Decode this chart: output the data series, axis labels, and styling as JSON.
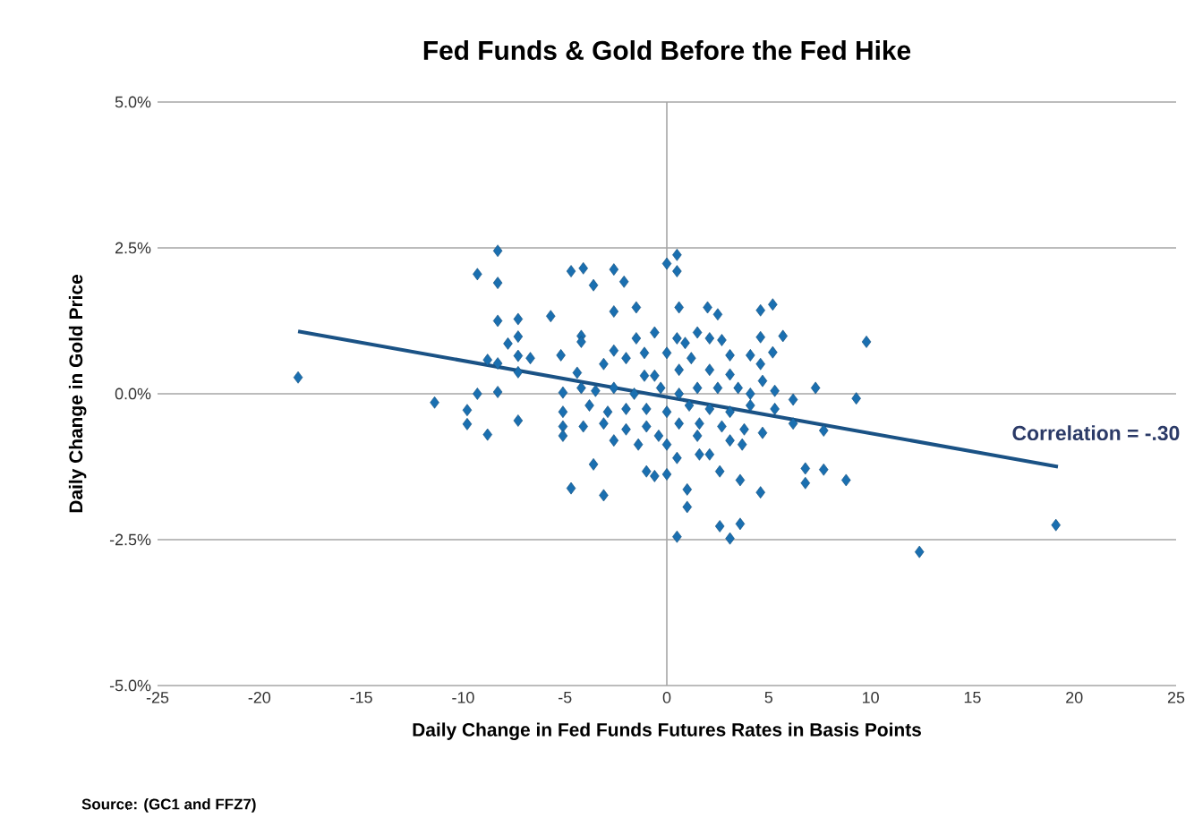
{
  "chart_data": {
    "type": "scatter",
    "title": "Fed Funds & Gold Before the Fed Hike",
    "xlabel": "Daily Change in Fed Funds Futures Rates in Basis Points",
    "ylabel": "Daily Change in Gold Price",
    "annotations": [
      "Correlation = -.30",
      "Source: (GC1 and FFZ7)"
    ],
    "xlim": [
      -25,
      25
    ],
    "xticks": [
      -25,
      -20,
      -15,
      -10,
      -5,
      0,
      5,
      10,
      15,
      20,
      25
    ],
    "ylim": [
      -5,
      5
    ],
    "yticks": [
      {
        "value": -5,
        "label": "-5.0%"
      },
      {
        "value": -2.5,
        "label": "-2.5%"
      },
      {
        "value": 0,
        "label": "0.0%"
      },
      {
        "value": 2.5,
        "label": "2.5%"
      },
      {
        "value": 5,
        "label": "5.0%"
      }
    ],
    "grid": "y",
    "marker": "diamond",
    "ref_lines": [
      {
        "axis": "x",
        "value": 0,
        "color": "#a6a6a6"
      }
    ],
    "series": [
      {
        "color": "#1a6fb0",
        "x": [
          -18.1,
          -11.4,
          -8.3,
          -9.3,
          -8.3,
          -8.3,
          -7.3,
          -7.8,
          -7.3,
          -8.8,
          -8.3,
          -7.3,
          -7.3,
          -9.3,
          -8.3,
          -9.8,
          -9.8,
          -8.8,
          -7.3,
          -4.7,
          -4.1,
          -2.6,
          -2.1,
          -3.6,
          0.0,
          0.5,
          0.5,
          -5.7,
          -2.6,
          -1.5,
          0.6,
          2.0,
          2.5,
          4.6,
          5.2,
          -4.2,
          -4.2,
          -1.5,
          -0.6,
          0.5,
          1.5,
          2.1,
          2.7,
          4.6,
          5.7,
          9.8,
          -5.2,
          -2.6,
          -1.1,
          0.0,
          0.9,
          1.2,
          3.1,
          4.1,
          5.2,
          4.6,
          -6.7,
          -4.4,
          -3.1,
          -2.0,
          -1.1,
          -0.6,
          0.6,
          2.1,
          3.1,
          4.7,
          7.3,
          -5.1,
          -4.2,
          -3.5,
          -2.6,
          -1.6,
          -0.3,
          0.6,
          1.5,
          2.5,
          3.5,
          4.1,
          5.3,
          6.2,
          9.3,
          -5.1,
          -3.8,
          -2.9,
          -2.0,
          -1.0,
          0.0,
          1.1,
          2.1,
          3.1,
          4.1,
          5.3,
          -5.1,
          -4.1,
          -3.1,
          -2.0,
          -1.0,
          0.6,
          1.6,
          2.7,
          3.8,
          4.7,
          6.2,
          7.7,
          -5.1,
          -2.6,
          -1.4,
          -0.4,
          0.0,
          1.5,
          3.1,
          3.7,
          -3.6,
          -1.0,
          -0.6,
          0.0,
          0.5,
          1.6,
          2.1,
          2.6,
          3.6,
          4.6,
          6.8,
          6.8,
          7.7,
          8.8,
          -4.7,
          -3.1,
          1.0,
          1.0,
          2.6,
          3.6,
          3.1,
          0.5,
          19.1,
          12.4
        ],
        "values": [
          0.28,
          -0.15,
          2.45,
          2.05,
          1.9,
          1.25,
          1.28,
          0.86,
          0.98,
          0.58,
          0.52,
          0.65,
          0.37,
          0.0,
          0.03,
          -0.28,
          -0.52,
          -0.7,
          -0.46,
          2.1,
          2.15,
          2.13,
          1.92,
          1.86,
          2.23,
          2.38,
          2.1,
          1.33,
          1.41,
          1.48,
          1.48,
          1.48,
          1.36,
          1.43,
          1.53,
          0.99,
          0.89,
          0.95,
          1.05,
          0.95,
          1.05,
          0.95,
          0.92,
          0.97,
          0.99,
          0.89,
          0.66,
          0.74,
          0.7,
          0.7,
          0.87,
          0.61,
          0.66,
          0.66,
          0.71,
          0.51,
          0.61,
          0.36,
          0.51,
          0.61,
          0.31,
          0.31,
          0.41,
          0.41,
          0.33,
          0.22,
          0.1,
          0.02,
          0.1,
          0.05,
          0.1,
          0.0,
          0.1,
          0.0,
          0.1,
          0.1,
          0.1,
          0.0,
          0.05,
          -0.1,
          -0.08,
          -0.31,
          -0.2,
          -0.31,
          -0.26,
          -0.26,
          -0.31,
          -0.2,
          -0.26,
          -0.31,
          -0.2,
          -0.26,
          -0.56,
          -0.56,
          -0.51,
          -0.61,
          -0.56,
          -0.51,
          -0.51,
          -0.56,
          -0.61,
          -0.67,
          -0.51,
          -0.63,
          -0.72,
          -0.8,
          -0.87,
          -0.72,
          -0.87,
          -0.72,
          -0.8,
          -0.87,
          -1.21,
          -1.33,
          -1.41,
          -1.38,
          -1.1,
          -1.04,
          -1.04,
          -1.33,
          -1.48,
          -1.69,
          -1.28,
          -1.53,
          -1.3,
          -1.48,
          -1.62,
          -1.74,
          -1.64,
          -1.94,
          -2.27,
          -2.23,
          -2.48,
          -2.45,
          -2.25,
          -2.71
        ]
      },
      {
        "type": "line",
        "marker": "none",
        "color": "#1a5285",
        "x": [
          -18.1,
          19.2
        ],
        "values": [
          1.07,
          -1.25
        ]
      }
    ]
  }
}
